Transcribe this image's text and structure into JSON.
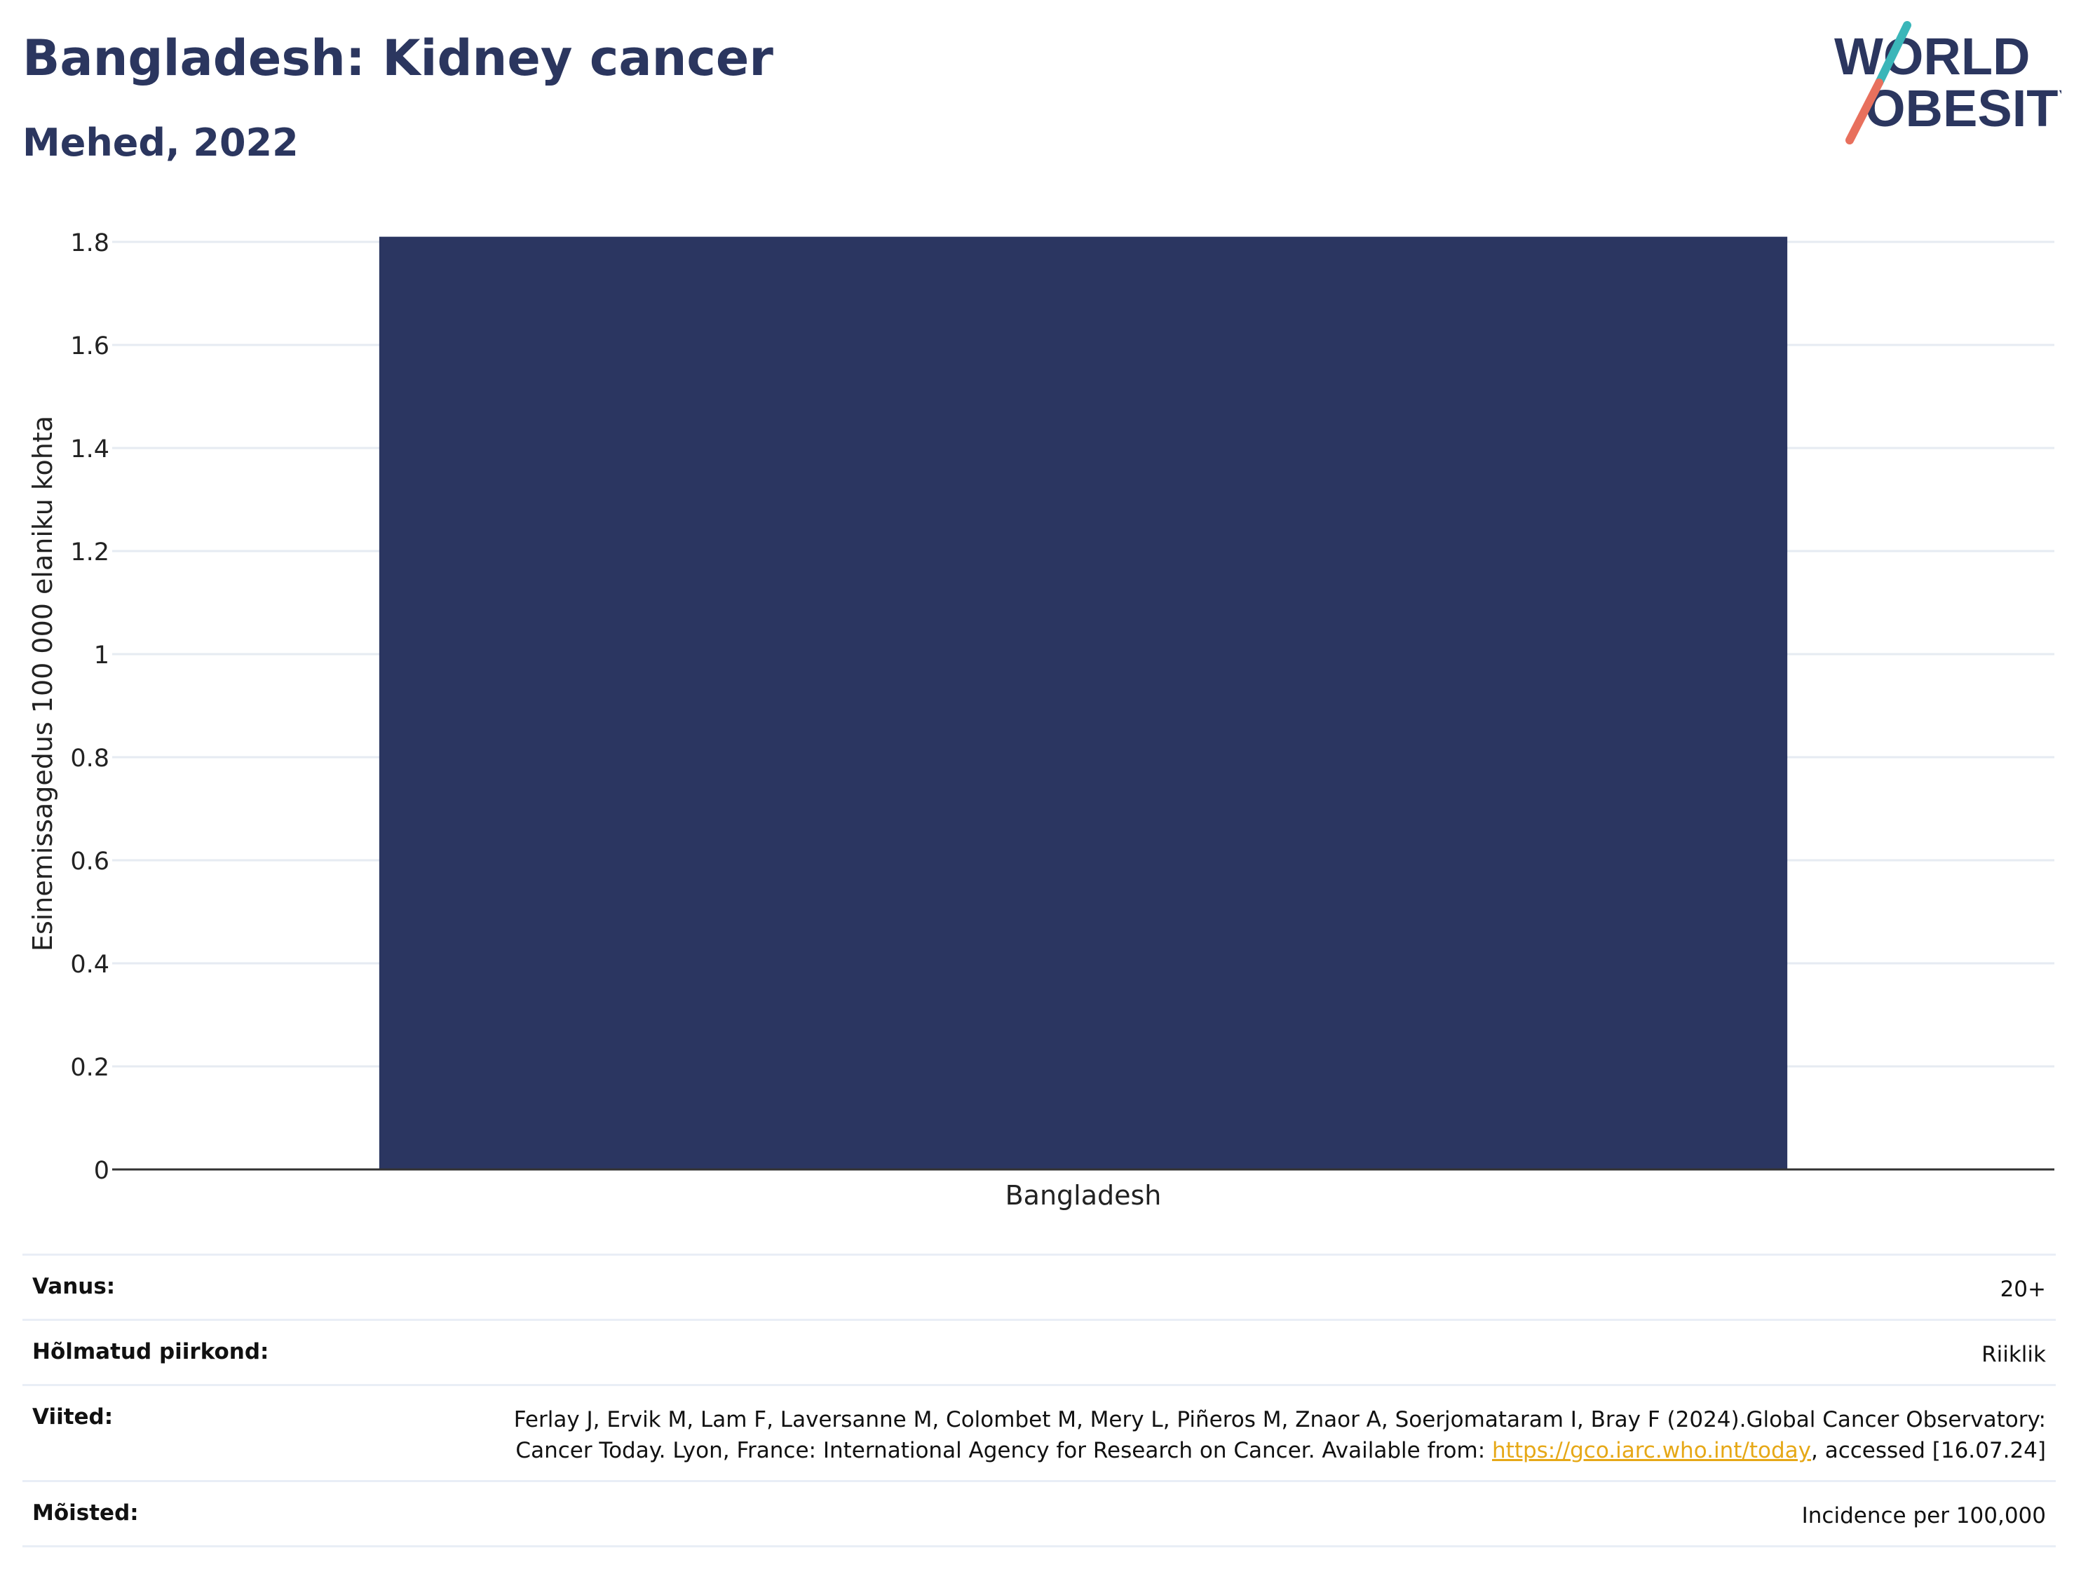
{
  "header": {
    "title": "Bangladesh: Kidney cancer",
    "subtitle": "Mehed, 2022",
    "logo_line1": "WORLD",
    "logo_line2": "OBESITY"
  },
  "colors": {
    "bar": "#2b3661",
    "title": "#2b365f",
    "grid": "#e6ebf2",
    "axis": "#333333",
    "logo_teal": "#3bb6b9",
    "logo_coral": "#e8705d",
    "link": "#e6a817"
  },
  "chart_data": {
    "type": "bar",
    "categories": [
      "Bangladesh"
    ],
    "values": [
      1.81
    ],
    "ylabel": "Esinemissagedus 100 000 elaniku kohta",
    "xlabel": "",
    "ylim": [
      0,
      1.8
    ],
    "yticks": [
      "0",
      "0.2",
      "0.4",
      "0.6",
      "0.8",
      "1",
      "1.2",
      "1.4",
      "1.6",
      "1.8"
    ],
    "grid": true
  },
  "footer": {
    "age_label": "Vanus:",
    "age_value": "20+",
    "region_label": "Hõlmatud piirkond:",
    "region_value": "Riiklik",
    "ref_label": "Viited:",
    "ref_text_1": "Ferlay J, Ervik M, Lam F, Laversanne M, Colombet M, Mery L, Piñeros M, Znaor A, Soerjomataram I, Bray F (2024).Global Cancer Observatory: Cancer Today. Lyon, France: International Agency for Research on Cancer. Available from: ",
    "ref_link": "https://gco.iarc.who.int/today",
    "ref_text_2": ", accessed [16.07.24]",
    "def_label": "Mõisted:",
    "def_value": "Incidence per 100,000"
  }
}
